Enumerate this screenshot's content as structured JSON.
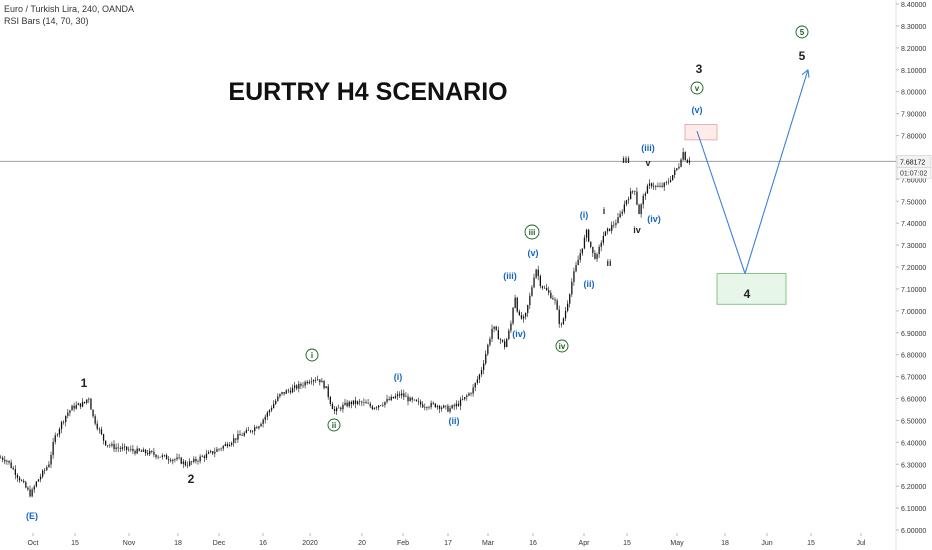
{
  "header": {
    "symbol_line": "Euro / Turkish Lira, 240, OANDA",
    "indicator_line": "RSI Bars (14, 70, 30)"
  },
  "chart_data": {
    "type": "candlestick",
    "title": "EURTRY H4 SCENARIO",
    "x_tick_labels": [
      "Oct",
      "15",
      "Nov",
      "18",
      "Dec",
      "16",
      "2020",
      "20",
      "Feb",
      "17",
      "Mar",
      "16",
      "Apr",
      "15",
      "May",
      "18",
      "Jun",
      "15",
      "Jul"
    ],
    "y_tick_labels": [
      "6.00000",
      "6.10000",
      "6.20000",
      "6.30000",
      "6.40000",
      "6.50000",
      "6.60000",
      "6.70000",
      "6.80000",
      "6.90000",
      "7.00000",
      "7.10000",
      "7.20000",
      "7.30000",
      "7.40000",
      "7.50000",
      "7.60000",
      "7.70000",
      "7.80000",
      "7.90000",
      "8.00000",
      "8.10000",
      "8.20000",
      "8.30000",
      "8.40000"
    ],
    "ylim": [
      6.0,
      8.4
    ],
    "current_price": "7.68172",
    "countdown": "01:07:02",
    "price_path": [
      [
        0,
        6.33
      ],
      [
        6,
        6.32
      ],
      [
        12,
        6.28
      ],
      [
        18,
        6.24
      ],
      [
        24,
        6.2
      ],
      [
        30,
        6.16
      ],
      [
        36,
        6.22
      ],
      [
        42,
        6.26
      ],
      [
        48,
        6.3
      ],
      [
        54,
        6.42
      ],
      [
        60,
        6.48
      ],
      [
        66,
        6.53
      ],
      [
        72,
        6.56
      ],
      [
        78,
        6.57
      ],
      [
        84,
        6.58
      ],
      [
        88,
        6.61
      ],
      [
        92,
        6.52
      ],
      [
        98,
        6.46
      ],
      [
        104,
        6.4
      ],
      [
        112,
        6.38
      ],
      [
        122,
        6.37
      ],
      [
        135,
        6.36
      ],
      [
        150,
        6.35
      ],
      [
        165,
        6.33
      ],
      [
        178,
        6.32
      ],
      [
        185,
        6.3
      ],
      [
        192,
        6.31
      ],
      [
        200,
        6.33
      ],
      [
        210,
        6.35
      ],
      [
        222,
        6.38
      ],
      [
        235,
        6.42
      ],
      [
        248,
        6.45
      ],
      [
        258,
        6.48
      ],
      [
        265,
        6.52
      ],
      [
        272,
        6.57
      ],
      [
        280,
        6.62
      ],
      [
        290,
        6.64
      ],
      [
        300,
        6.66
      ],
      [
        310,
        6.69
      ],
      [
        318,
        6.69
      ],
      [
        325,
        6.65
      ],
      [
        330,
        6.58
      ],
      [
        334,
        6.54
      ],
      [
        340,
        6.56
      ],
      [
        350,
        6.58
      ],
      [
        362,
        6.58
      ],
      [
        372,
        6.56
      ],
      [
        382,
        6.58
      ],
      [
        392,
        6.6
      ],
      [
        400,
        6.62
      ],
      [
        410,
        6.59
      ],
      [
        422,
        6.57
      ],
      [
        436,
        6.57
      ],
      [
        448,
        6.55
      ],
      [
        456,
        6.57
      ],
      [
        464,
        6.6
      ],
      [
        472,
        6.64
      ],
      [
        480,
        6.72
      ],
      [
        486,
        6.82
      ],
      [
        492,
        6.93
      ],
      [
        498,
        6.88
      ],
      [
        504,
        6.84
      ],
      [
        510,
        6.93
      ],
      [
        514,
        7.08
      ],
      [
        518,
        6.97
      ],
      [
        524,
        6.96
      ],
      [
        530,
        7.08
      ],
      [
        535,
        7.2
      ],
      [
        540,
        7.12
      ],
      [
        548,
        7.08
      ],
      [
        554,
        7.05
      ],
      [
        560,
        6.92
      ],
      [
        566,
        7.02
      ],
      [
        572,
        7.15
      ],
      [
        578,
        7.24
      ],
      [
        586,
        7.36
      ],
      [
        592,
        7.26
      ],
      [
        596,
        7.24
      ],
      [
        602,
        7.34
      ],
      [
        610,
        7.38
      ],
      [
        618,
        7.42
      ],
      [
        626,
        7.51
      ],
      [
        634,
        7.56
      ],
      [
        638,
        7.44
      ],
      [
        644,
        7.54
      ],
      [
        650,
        7.58
      ],
      [
        658,
        7.56
      ],
      [
        666,
        7.58
      ],
      [
        672,
        7.62
      ],
      [
        678,
        7.66
      ],
      [
        682,
        7.73
      ],
      [
        686,
        7.68
      ],
      [
        690,
        7.7
      ]
    ],
    "projection_path": [
      {
        "date_label": "May",
        "price": 7.82
      },
      {
        "date_label": "after May 18",
        "price": 7.17
      },
      {
        "date_label": "after Jun 15",
        "price": 8.1
      }
    ],
    "annotations": [
      {
        "text": "(E)",
        "color": "#1565c0"
      },
      {
        "text": "1",
        "color": "#222222"
      },
      {
        "text": "2",
        "color": "#222222"
      },
      {
        "text": "i",
        "color": "#1b5e20",
        "circled": true
      },
      {
        "text": "ii",
        "color": "#1b5e20",
        "circled": true
      },
      {
        "text": "(i)",
        "color": "#1565c0"
      },
      {
        "text": "(ii)",
        "color": "#1565c0"
      },
      {
        "text": "(iii)",
        "color": "#1565c0"
      },
      {
        "text": "(iv)",
        "color": "#1565c0"
      },
      {
        "text": "iii",
        "color": "#1b5e20",
        "circled": true
      },
      {
        "text": "(v)",
        "color": "#1565c0"
      },
      {
        "text": "iv",
        "color": "#1b5e20",
        "circled": true
      },
      {
        "text": "(ii)",
        "color": "#1565c0"
      },
      {
        "text": "(i)",
        "color": "#1565c0"
      },
      {
        "text": "i",
        "color": "#222222"
      },
      {
        "text": "ii",
        "color": "#222222"
      },
      {
        "text": "iv",
        "color": "#222222"
      },
      {
        "text": "(iv)",
        "color": "#1565c0"
      },
      {
        "text": "iii",
        "color": "#222222"
      },
      {
        "text": "v",
        "color": "#222222"
      },
      {
        "text": "(iii)",
        "color": "#1565c0"
      },
      {
        "text": "3",
        "color": "#222222"
      },
      {
        "text": "v",
        "color": "#1b5e20",
        "circled": true
      },
      {
        "text": "(v)",
        "color": "#1565c0"
      },
      {
        "text": "4",
        "color": "#222222"
      },
      {
        "text": "5",
        "color": "#1b5e20",
        "circled": true
      },
      {
        "text": "5",
        "color": "#222222"
      }
    ],
    "zones": [
      {
        "name": "target-zone-top",
        "price_top": 7.85,
        "price_bottom": 7.78,
        "fill": "#fdecea",
        "stroke": "#e0a0a0"
      },
      {
        "name": "target-zone-wave-4",
        "price_top": 7.17,
        "price_bottom": 7.03,
        "fill": "#e8f5e9",
        "stroke": "#66bb6a"
      }
    ],
    "colors": {
      "candle": "#111111",
      "projection": "#3d7fd6",
      "price_line": "#9e9e9e",
      "title": "#111111"
    }
  }
}
